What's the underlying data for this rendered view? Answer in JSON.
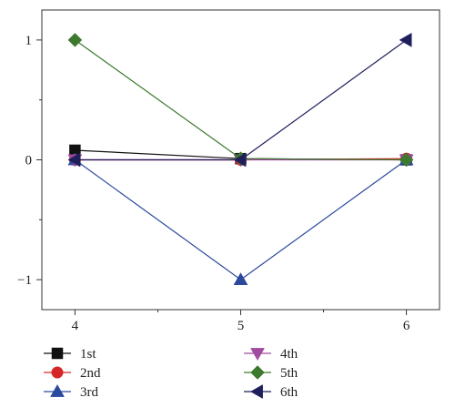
{
  "chart_data": {
    "type": "line",
    "x": [
      4,
      5,
      6
    ],
    "xlim": [
      3.8,
      6.2
    ],
    "ylim": [
      -1.25,
      1.25
    ],
    "xticks": [
      4,
      5,
      6
    ],
    "xtick_labels": [
      "4",
      "5",
      "6"
    ],
    "yticks": [
      1,
      0,
      -1
    ],
    "ytick_labels": [
      "1",
      "0",
      "−1"
    ],
    "minor_xticks": [
      4.5,
      5.5
    ],
    "minor_yticks": [
      0.5,
      -0.5
    ],
    "grid": false,
    "legend_position": "bottom",
    "series": [
      {
        "name": "1st",
        "values": [
          0.08,
          0.01,
          0.0
        ],
        "color": "#111111",
        "marker": "square"
      },
      {
        "name": "2nd",
        "values": [
          0.0,
          0.0,
          0.01
        ],
        "color": "#d62728",
        "marker": "circle"
      },
      {
        "name": "3rd",
        "values": [
          0.0,
          -1.0,
          0.0
        ],
        "color": "#2b4a9e",
        "marker": "triangle-up"
      },
      {
        "name": "4th",
        "values": [
          0.0,
          0.0,
          0.0
        ],
        "color": "#a04aa0",
        "marker": "triangle-down"
      },
      {
        "name": "5th",
        "values": [
          1.0,
          0.01,
          0.0
        ],
        "color": "#3d7a2e",
        "marker": "diamond"
      },
      {
        "name": "6th",
        "values": [
          0.0,
          0.0,
          1.0
        ],
        "color": "#1f1f5c",
        "marker": "triangle-left"
      }
    ]
  }
}
